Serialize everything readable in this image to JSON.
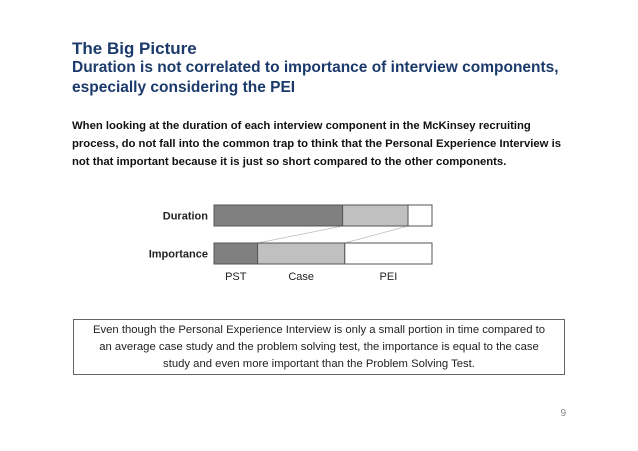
{
  "slide": {
    "title": "The Big Picture",
    "subtitle": "Duration is not correlated to importance of interview components, especially considering the PEI",
    "intro": "When looking at the duration of each interview component in the McKinsey recruiting process, do not fall into the common trap to think that the Personal Experience Interview is not that important because it is just so short compared to the other components.",
    "callout": "Even though the Personal Experience Interview is only a small portion in time compared to an average case study and the problem solving test, the importance is equal to the case study and even more important than the Problem Solving Test.",
    "page_number": "9"
  },
  "chart_data": {
    "type": "bar",
    "orientation": "horizontal",
    "stacked": true,
    "normalized": true,
    "categories": [
      "Duration",
      "Importance"
    ],
    "segments": [
      "PST",
      "Case",
      "PEI"
    ],
    "values": [
      [
        59,
        30,
        11
      ],
      [
        20,
        40,
        40
      ]
    ],
    "segment_colors": [
      "#808080",
      "#c0c0c0",
      "#ffffff"
    ],
    "connectors": true,
    "legend": "below"
  }
}
